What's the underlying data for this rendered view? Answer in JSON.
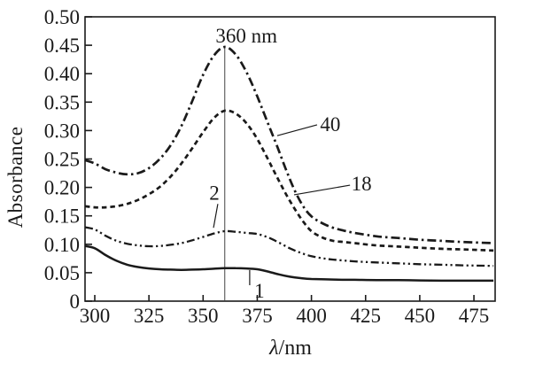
{
  "figure": {
    "background": "#ffffff",
    "ink_color": "#1a1a1a",
    "marker_line_color": "#444444"
  },
  "chart_data": {
    "type": "line",
    "title": "",
    "xlabel": "λ/nm",
    "xlabel_symbol": "λ",
    "xlabel_unit": "/nm",
    "ylabel": "Absorbance",
    "xlim": [
      295.5,
      484.5
    ],
    "ylim": [
      0,
      0.5
    ],
    "x_ticks": [
      300,
      325,
      350,
      375,
      400,
      425,
      450,
      475
    ],
    "y_ticks": [
      0,
      0.05,
      0.1,
      0.15,
      0.2,
      0.25,
      0.3,
      0.35,
      0.4,
      0.45,
      0.5
    ],
    "y_tick_labels": [
      "0",
      "0.05",
      "0.10",
      "0.15",
      "0.20",
      "0.25",
      "0.30",
      "0.35",
      "0.40",
      "0.45",
      "0.50"
    ],
    "grid": false,
    "legend": "none",
    "peak_wavelength_nm": 360,
    "series": [
      {
        "name": "40",
        "style": "dash-dot",
        "x": [
          295.5,
          300,
          305,
          310,
          315,
          320,
          325,
          330,
          335,
          340,
          345,
          350,
          355,
          360,
          365,
          370,
          375,
          380,
          384,
          388,
          392,
          396,
          400,
          405,
          410,
          415,
          420,
          430,
          440,
          450,
          460,
          470,
          484
        ],
        "y": [
          0.248,
          0.242,
          0.232,
          0.226,
          0.223,
          0.225,
          0.234,
          0.25,
          0.274,
          0.308,
          0.352,
          0.398,
          0.432,
          0.447,
          0.434,
          0.403,
          0.36,
          0.312,
          0.274,
          0.234,
          0.197,
          0.168,
          0.149,
          0.137,
          0.129,
          0.124,
          0.12,
          0.114,
          0.111,
          0.108,
          0.106,
          0.104,
          0.102
        ]
      },
      {
        "name": "18",
        "style": "dashed",
        "x": [
          295.5,
          300,
          305,
          310,
          315,
          320,
          325,
          330,
          335,
          340,
          345,
          350,
          355,
          360,
          365,
          370,
          375,
          380,
          384,
          388,
          392,
          396,
          400,
          405,
          410,
          415,
          420,
          430,
          440,
          450,
          460,
          470,
          484
        ],
        "y": [
          0.167,
          0.165,
          0.165,
          0.167,
          0.171,
          0.178,
          0.188,
          0.201,
          0.219,
          0.242,
          0.269,
          0.297,
          0.322,
          0.335,
          0.33,
          0.313,
          0.285,
          0.249,
          0.219,
          0.19,
          0.164,
          0.141,
          0.123,
          0.112,
          0.106,
          0.104,
          0.102,
          0.098,
          0.096,
          0.094,
          0.092,
          0.091,
          0.089
        ]
      },
      {
        "name": "2",
        "style": "dash-dot-dot",
        "x": [
          295.5,
          300,
          305,
          310,
          315,
          320,
          325,
          330,
          335,
          340,
          345,
          350,
          355,
          360,
          365,
          370,
          375,
          380,
          385,
          390,
          395,
          400,
          405,
          410,
          420,
          430,
          440,
          450,
          460,
          470,
          484
        ],
        "y": [
          0.13,
          0.126,
          0.115,
          0.106,
          0.101,
          0.098,
          0.0965,
          0.097,
          0.099,
          0.102,
          0.107,
          0.113,
          0.119,
          0.123,
          0.122,
          0.12,
          0.118,
          0.112,
          0.103,
          0.093,
          0.085,
          0.079,
          0.0755,
          0.073,
          0.07,
          0.068,
          0.0665,
          0.065,
          0.064,
          0.063,
          0.062
        ]
      },
      {
        "name": "1",
        "style": "solid",
        "x": [
          295.5,
          300,
          305,
          310,
          315,
          320,
          325,
          330,
          335,
          340,
          345,
          350,
          355,
          360,
          365,
          370,
          375,
          380,
          385,
          390,
          395,
          400,
          410,
          420,
          430,
          440,
          450,
          460,
          470,
          484
        ],
        "y": [
          0.097,
          0.093,
          0.081,
          0.071,
          0.064,
          0.06,
          0.0575,
          0.056,
          0.0555,
          0.055,
          0.0555,
          0.056,
          0.057,
          0.058,
          0.058,
          0.0575,
          0.056,
          0.052,
          0.047,
          0.043,
          0.0405,
          0.039,
          0.038,
          0.0375,
          0.037,
          0.037,
          0.0365,
          0.036,
          0.036,
          0.036
        ]
      }
    ],
    "marker_line": {
      "nm": 360,
      "from_value": 0.449,
      "to_value": 0
    },
    "annotations": [
      {
        "text": "360 nm",
        "nm": 370,
        "value": 0.455,
        "anchor": "middle",
        "leader": null
      },
      {
        "text": "40",
        "nm": 408.7,
        "value": 0.299,
        "anchor": "middle",
        "leader": {
          "from": [
            384.2,
            0.291
          ],
          "to": [
            402.6,
            0.31
          ]
        }
      },
      {
        "text": "18",
        "nm": 423.1,
        "value": 0.195,
        "anchor": "middle",
        "leader": {
          "from": [
            392.0,
            0.187
          ],
          "to": [
            417.8,
            0.204
          ]
        }
      },
      {
        "text": "2",
        "nm": 355.2,
        "value": 0.178,
        "anchor": "middle",
        "leader": {
          "from": [
            356.8,
            0.171
          ],
          "to": [
            354.8,
            0.129
          ]
        }
      },
      {
        "text": "1",
        "nm": 376.0,
        "value": 0.006,
        "anchor": "middle",
        "leader": {
          "from": [
            371.5,
            0.0545
          ],
          "to": [
            371.5,
            0.028
          ]
        }
      }
    ]
  }
}
